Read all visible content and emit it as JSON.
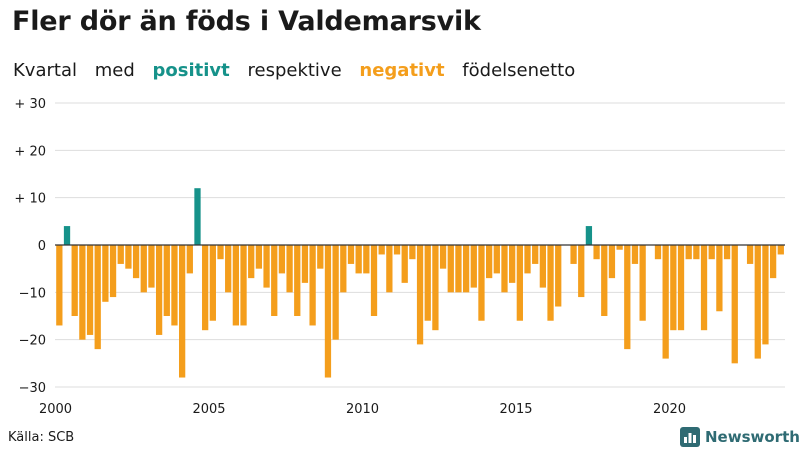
{
  "title": "Fler dör än föds i Valdemarsvik",
  "subtitle": {
    "word1": "Kvartal",
    "word2": "med",
    "positive": "positivt",
    "word3": "respektive",
    "negative": "negativt",
    "word4": "födelsenetto"
  },
  "colors": {
    "positive": "#16928a",
    "negative": "#f49e1c"
  },
  "source": "Källa: SCB",
  "brand": {
    "name": "Newsworthy",
    "icon": "chart-logo-icon"
  },
  "chart_data": {
    "type": "bar",
    "start_year": 2000,
    "start_quarter": 1,
    "x_tick_labels": [
      "2000",
      "2005",
      "2010",
      "2015",
      "2020"
    ],
    "y_tick_labels": [
      "+ 30",
      "+ 20",
      "+ 10",
      "0",
      "−10",
      "−20",
      "−30"
    ],
    "y_ticks": [
      30,
      20,
      10,
      0,
      -10,
      -20,
      -30
    ],
    "ylim": [
      -30,
      30
    ],
    "grid": true,
    "legend": "none",
    "values": [
      -17,
      4,
      -15,
      -20,
      -19,
      -22,
      -12,
      -11,
      -4,
      -5,
      -7,
      -10,
      -9,
      -19,
      -15,
      -17,
      -28,
      -6,
      12,
      -18,
      -16,
      -3,
      -10,
      -17,
      -17,
      -7,
      -5,
      -9,
      -15,
      -6,
      -10,
      -15,
      -8,
      -17,
      -5,
      -28,
      -20,
      -10,
      -4,
      -6,
      -6,
      -15,
      -2,
      -10,
      -2,
      -8,
      -3,
      -21,
      -16,
      -18,
      -5,
      -10,
      -10,
      -10,
      -9,
      -16,
      -7,
      -6,
      -10,
      -8,
      -16,
      -6,
      -4,
      -9,
      -16,
      -13,
      0,
      -4,
      -11,
      4,
      -3,
      -15,
      -7,
      -1,
      -22,
      -4,
      -16,
      0,
      -3,
      -24,
      -18,
      -18,
      -3,
      -3,
      -18,
      -3,
      -14,
      -3,
      -25,
      0,
      -4,
      -24,
      -21,
      -7,
      -2
    ]
  }
}
